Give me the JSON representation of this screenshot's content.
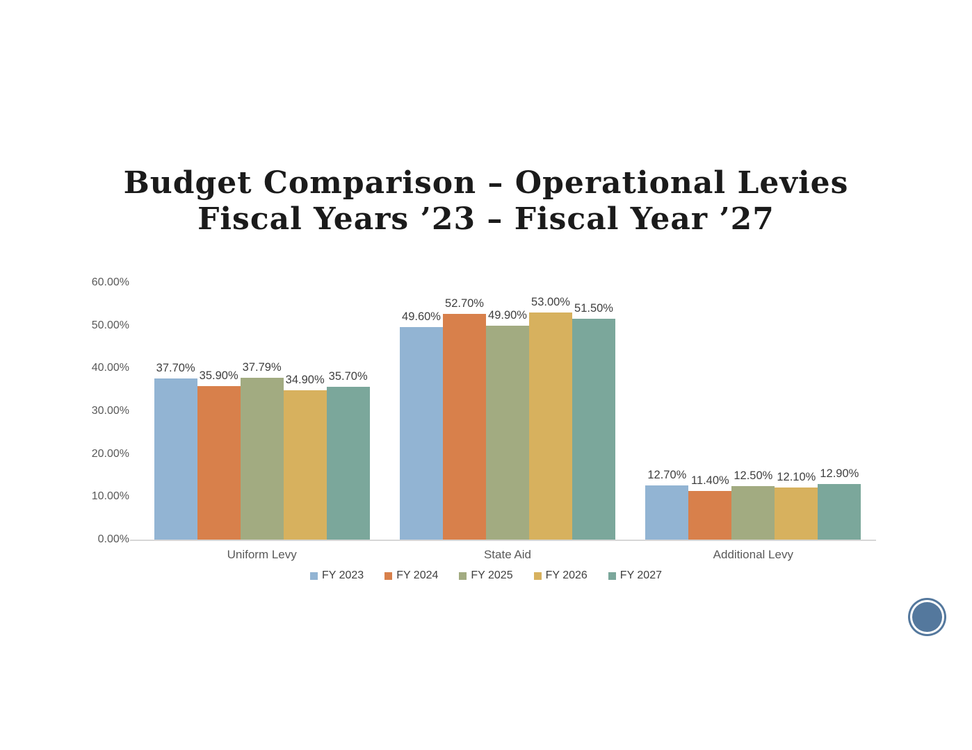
{
  "slide": {
    "title_lines": [
      "Budget Comparison – Operational Levies",
      "Fiscal Years ’23 – Fiscal Year ’27"
    ]
  },
  "chart_data": {
    "type": "bar",
    "title": "Budget Comparison – Operational Levies Fiscal Years ’23 – Fiscal Year ’27",
    "categories": [
      "Uniform Levy",
      "State Aid",
      "Additional Levy"
    ],
    "series": [
      {
        "name": "FY 2023",
        "color": "#92b4d3",
        "values": [
          37.7,
          49.6,
          12.7
        ]
      },
      {
        "name": "FY 2024",
        "color": "#d8804b",
        "values": [
          35.9,
          52.7,
          11.4
        ]
      },
      {
        "name": "FY 2025",
        "color": "#a2ab81",
        "values": [
          37.79,
          49.9,
          12.5
        ]
      },
      {
        "name": "FY 2026",
        "color": "#d7b15e",
        "values": [
          34.9,
          53.0,
          12.1
        ]
      },
      {
        "name": "FY 2027",
        "color": "#7ba79b",
        "values": [
          35.7,
          51.5,
          12.9
        ]
      }
    ],
    "data_labels": [
      [
        "37.70%",
        "49.60%",
        "12.70%"
      ],
      [
        "35.90%",
        "52.70%",
        "11.40%"
      ],
      [
        "37.79%",
        "49.90%",
        "12.50%"
      ],
      [
        "34.90%",
        "53.00%",
        "12.10%"
      ],
      [
        "35.70%",
        "51.50%",
        "12.90%"
      ]
    ],
    "xlabel": "",
    "ylabel": "",
    "ylim": [
      0,
      60
    ],
    "y_ticks": [
      "0.00%",
      "10.00%",
      "20.00%",
      "30.00%",
      "40.00%",
      "50.00%",
      "60.00%"
    ],
    "grid": false,
    "legend_position": "bottom"
  },
  "decoration": {
    "circle_color": "#54789d"
  }
}
